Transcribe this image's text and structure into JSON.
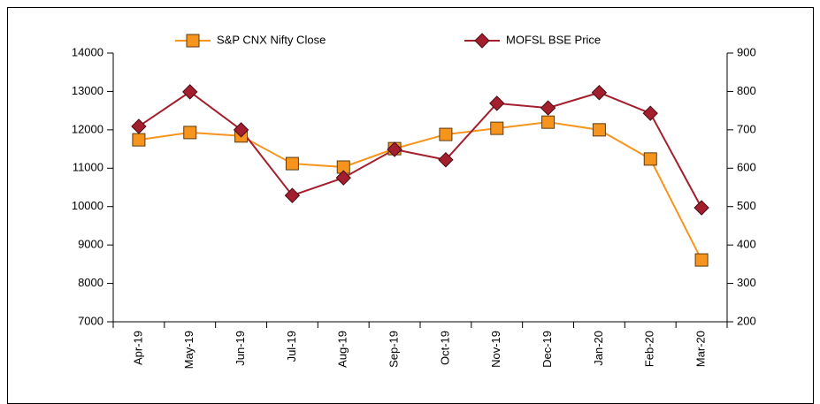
{
  "chart_data": {
    "type": "line",
    "categories": [
      "Apr-19",
      "May-19",
      "Jun-19",
      "Jul-19",
      "Aug-19",
      "Sep-19",
      "Oct-19",
      "Nov-19",
      "Dec-19",
      "Jan-20",
      "Feb-20",
      "Mar-20"
    ],
    "series": [
      {
        "name": "S&P CNX Nifty Close",
        "color": "#f7941d",
        "marker": "square",
        "axis": "y",
        "values": [
          11740,
          11930,
          11840,
          11120,
          11030,
          11510,
          11880,
          12040,
          12200,
          12000,
          11240,
          8610
        ]
      },
      {
        "name": "MOFSL BSE Price",
        "color": "#a31f2e",
        "marker": "diamond",
        "axis": "y2",
        "values": [
          709,
          799,
          700,
          529,
          575,
          649,
          622,
          769,
          757,
          797,
          743,
          497
        ]
      }
    ],
    "ylim": [
      7000,
      14000
    ],
    "yticks": [
      7000,
      8000,
      9000,
      10000,
      11000,
      12000,
      13000,
      14000
    ],
    "y2lim": [
      200,
      900
    ],
    "y2ticks": [
      200,
      300,
      400,
      500,
      600,
      700,
      800,
      900
    ],
    "legend": "top"
  }
}
